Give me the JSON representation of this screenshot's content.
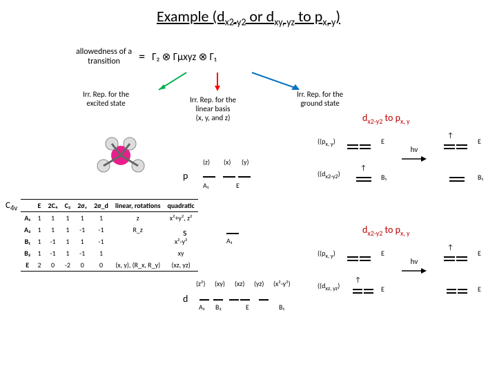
{
  "title_prefix": "Example (d",
  "title_sub1": "x2-y2",
  "title_mid": " or d",
  "title_sub2": "xy, yz",
  "title_mid2": " to p",
  "title_sub3": "x, y",
  "title_end": ")",
  "allowedness_l1": "allowedness of a",
  "allowedness_l2": "transition",
  "eq_sign": "=",
  "gamma_eq": "Γ₂ ⊗ Γμxyz ⊗ Γ₁",
  "lbl_excited_l1": "Irr. Rep. for the",
  "lbl_excited_l2": "excited state",
  "lbl_linear_l1": "Irr. Rep. for the",
  "lbl_linear_l2": "linear basis",
  "lbl_linear_l3": "(x, y, and z)",
  "lbl_ground_l1": "Irr. Rep. for the",
  "lbl_ground_l2": "ground state",
  "c4v_label": "C",
  "c4v_sub": "4v",
  "char_table": {
    "headers": [
      "",
      "E",
      "2C₄",
      "C₂",
      "2σᵥ",
      "2σ_d",
      "linear, rotations",
      "quadratic"
    ],
    "rows": [
      [
        "A₁",
        "1",
        "1",
        "1",
        "1",
        "1",
        "z",
        "x²+y², z²"
      ],
      [
        "A₂",
        "1",
        "1",
        "1",
        "-1",
        "-1",
        "R_z",
        ""
      ],
      [
        "B₁",
        "1",
        "-1",
        "1",
        "1",
        "-1",
        "",
        "x²-y²"
      ],
      [
        "B₂",
        "1",
        "-1",
        "1",
        "-1",
        "1",
        "",
        "xy"
      ],
      [
        "E",
        "2",
        "0",
        "-2",
        "0",
        "0",
        "(x, y), (R_x, R_y)",
        "(xz, yz)"
      ]
    ]
  },
  "p_label": "p",
  "s_label": "s",
  "d_label": "d",
  "z_lbl": "(z)",
  "x_lbl": "(x)",
  "y_lbl": "(y)",
  "A1": "A₁",
  "E_sym": "E",
  "B1": "B₁",
  "B2": "B₂",
  "z2_lbl": "(z²)",
  "xy_lbl": "(xy)",
  "xz_lbl": "(xz)",
  "yz_lbl": "(yz)",
  "x2y2_lbl": "(x²-y²)",
  "trans1_pre": "d",
  "trans1_sub1": "x2-y2",
  "trans1_mid": " to p",
  "trans1_sub2": "x, y",
  "trans2_pre": "d",
  "trans2_sub1": "x2-y2",
  "trans2_mid": " to p",
  "trans2_sub2": "x, y",
  "pxy_lbl": "(p",
  "pxy_sub": "x, y",
  "pxy_end": ")",
  "dx2y2_lbl": "(d",
  "dx2y2_sub": "x2-y2",
  "dx2y2_end": ")",
  "dxzyz_lbl": "(d",
  "dxzyz_sub": "xz, yz",
  "dxzyz_end": ")",
  "hv": "hν",
  "colors": {
    "dark_red": "#c00000",
    "green": "#00b050",
    "red": "#ff0000",
    "blue": "#0070c0"
  }
}
